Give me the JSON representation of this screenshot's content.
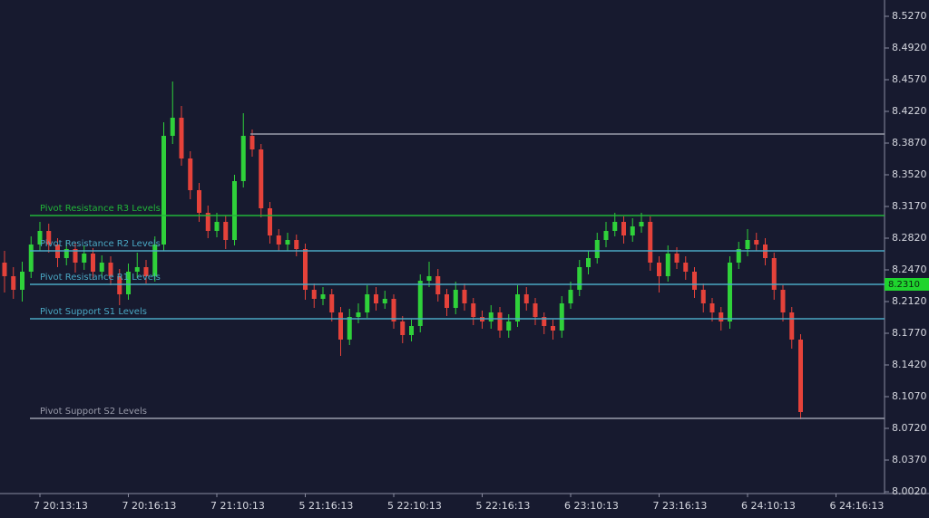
{
  "chart_data": {
    "type": "candlestick",
    "categories": [
      null,
      null,
      null,
      null,
      "7 20:13:13",
      null,
      null,
      null,
      null,
      null,
      null,
      null,
      null,
      null,
      "7 20:16:13",
      null,
      null,
      null,
      null,
      null,
      null,
      null,
      null,
      null,
      "7 21:10:13",
      null,
      null,
      null,
      null,
      null,
      null,
      null,
      null,
      null,
      "5 21:16:13",
      null,
      null,
      null,
      null,
      null,
      null,
      null,
      null,
      null,
      "5 22:10:13",
      null,
      null,
      null,
      null,
      null,
      null,
      null,
      null,
      null,
      "5 22:16:13",
      null,
      null,
      null,
      null,
      null,
      null,
      null,
      null,
      null,
      "6 23:10:13",
      null,
      null,
      null,
      null,
      null,
      null,
      null,
      null,
      null,
      "7 23:16:13",
      null,
      null,
      null,
      null,
      null,
      null,
      null,
      null,
      null,
      "6 24:10:13",
      null,
      null,
      null,
      null,
      null,
      null,
      null,
      null,
      null,
      "6 24:16:13",
      null,
      null
    ],
    "open": [
      8.255,
      8.24,
      8.225,
      8.245,
      8.275,
      8.29,
      8.275,
      8.26,
      8.27,
      8.255,
      8.265,
      8.245,
      8.255,
      8.24,
      8.22,
      8.245,
      8.25,
      8.24,
      8.275,
      8.395,
      8.415,
      8.37,
      8.335,
      8.31,
      8.29,
      8.3,
      8.28,
      8.345,
      8.395,
      8.38,
      8.315,
      8.285,
      8.275,
      8.28,
      8.27,
      8.225,
      8.215,
      8.22,
      8.2,
      8.17,
      8.195,
      8.2,
      8.22,
      8.21,
      8.215,
      8.19,
      8.175,
      8.185,
      8.235,
      8.24,
      8.22,
      8.205,
      8.225,
      8.21,
      8.195,
      8.19,
      8.2,
      8.18,
      8.19,
      8.22,
      8.21,
      8.195,
      8.185,
      8.18,
      8.21,
      8.225,
      8.25,
      8.26,
      8.28,
      8.29,
      8.3,
      8.285,
      8.295,
      8.3,
      8.255,
      8.24,
      8.265,
      8.255,
      8.245,
      8.225,
      8.21,
      8.2,
      8.19,
      8.255,
      8.27,
      8.28,
      8.275,
      8.26,
      8.225,
      8.2,
      8.17,
      null,
      null,
      null,
      null,
      null,
      null
    ],
    "high": [
      8.268,
      8.25,
      8.256,
      8.284,
      8.3,
      8.298,
      8.282,
      8.279,
      8.278,
      8.274,
      8.271,
      8.263,
      8.262,
      8.248,
      8.254,
      8.266,
      8.258,
      8.284,
      8.41,
      8.455,
      8.428,
      8.378,
      8.343,
      8.318,
      8.31,
      8.307,
      8.352,
      8.42,
      8.402,
      8.386,
      8.322,
      8.292,
      8.288,
      8.286,
      8.276,
      8.232,
      8.228,
      8.226,
      8.206,
      8.204,
      8.21,
      8.23,
      8.228,
      8.224,
      8.22,
      8.196,
      8.192,
      8.242,
      8.256,
      8.248,
      8.226,
      8.234,
      8.232,
      8.216,
      8.202,
      8.208,
      8.206,
      8.198,
      8.23,
      8.228,
      8.216,
      8.2,
      8.192,
      8.218,
      8.234,
      8.258,
      8.268,
      8.288,
      8.3,
      8.31,
      8.306,
      8.304,
      8.31,
      8.306,
      8.262,
      8.274,
      8.272,
      8.262,
      8.25,
      8.232,
      8.216,
      8.206,
      8.262,
      8.278,
      8.292,
      8.288,
      8.282,
      8.266,
      8.23,
      8.206,
      8.176,
      null,
      null,
      null,
      null,
      null,
      null
    ],
    "low": [
      8.222,
      8.215,
      8.212,
      8.238,
      8.268,
      8.266,
      8.25,
      8.252,
      8.244,
      8.247,
      8.236,
      8.238,
      8.23,
      8.208,
      8.214,
      8.238,
      8.232,
      8.234,
      8.268,
      8.386,
      8.362,
      8.325,
      8.3,
      8.282,
      8.283,
      8.27,
      8.274,
      8.338,
      8.372,
      8.305,
      8.276,
      8.268,
      8.268,
      8.262,
      8.214,
      8.205,
      8.208,
      8.19,
      8.152,
      8.164,
      8.188,
      8.194,
      8.202,
      8.204,
      8.182,
      8.166,
      8.168,
      8.178,
      8.228,
      8.212,
      8.196,
      8.198,
      8.202,
      8.186,
      8.182,
      8.182,
      8.172,
      8.172,
      8.184,
      8.202,
      8.186,
      8.176,
      8.17,
      8.172,
      8.204,
      8.218,
      8.242,
      8.254,
      8.272,
      8.284,
      8.276,
      8.278,
      8.288,
      8.246,
      8.222,
      8.234,
      8.248,
      8.236,
      8.216,
      8.2,
      8.19,
      8.18,
      8.182,
      8.248,
      8.262,
      8.268,
      8.252,
      8.214,
      8.19,
      8.16,
      8.082,
      null,
      null,
      null,
      null,
      null,
      null
    ],
    "close": [
      8.24,
      8.225,
      8.245,
      8.275,
      8.29,
      8.275,
      8.26,
      8.27,
      8.255,
      8.265,
      8.245,
      8.255,
      8.24,
      8.22,
      8.245,
      8.25,
      8.24,
      8.275,
      8.395,
      8.415,
      8.37,
      8.335,
      8.31,
      8.29,
      8.3,
      8.28,
      8.345,
      8.395,
      8.38,
      8.315,
      8.285,
      8.275,
      8.28,
      8.27,
      8.225,
      8.215,
      8.22,
      8.2,
      8.17,
      8.195,
      8.2,
      8.22,
      8.21,
      8.215,
      8.19,
      8.175,
      8.185,
      8.235,
      8.24,
      8.22,
      8.205,
      8.225,
      8.21,
      8.195,
      8.19,
      8.2,
      8.18,
      8.19,
      8.22,
      8.21,
      8.195,
      8.185,
      8.18,
      8.21,
      8.225,
      8.25,
      8.26,
      8.28,
      8.29,
      8.3,
      8.285,
      8.295,
      8.3,
      8.255,
      8.24,
      8.265,
      8.255,
      8.245,
      8.225,
      8.21,
      8.2,
      8.19,
      8.255,
      8.27,
      8.28,
      8.275,
      8.26,
      8.225,
      8.2,
      8.17,
      8.09,
      null,
      null,
      null,
      null,
      null,
      null
    ],
    "up_color": "#2fd13a",
    "down_color": "#e5423a",
    "ylim": [
      8.0,
      8.545
    ],
    "yticks": [
      {
        "value": 8.527,
        "label": "8.5270"
      },
      {
        "value": 8.492,
        "label": "8.4920"
      },
      {
        "value": 8.457,
        "label": "8.4570"
      },
      {
        "value": 8.422,
        "label": "8.4220"
      },
      {
        "value": 8.387,
        "label": "8.3870"
      },
      {
        "value": 8.352,
        "label": "8.3520"
      },
      {
        "value": 8.317,
        "label": "8.3170"
      },
      {
        "value": 8.282,
        "label": "8.2820"
      },
      {
        "value": 8.247,
        "label": "8.2470"
      },
      {
        "value": 8.212,
        "label": "8.2120"
      },
      {
        "value": 8.177,
        "label": "8.1770"
      },
      {
        "value": 8.142,
        "label": "8.1420"
      },
      {
        "value": 8.107,
        "label": "8.1070"
      },
      {
        "value": 8.072,
        "label": "8.0720"
      },
      {
        "value": 8.037,
        "label": "8.0370"
      },
      {
        "value": 8.002,
        "label": "8.0020"
      }
    ],
    "levels": [
      {
        "value": 8.397,
        "color": "#9a9cab"
      },
      {
        "name": "Pivot Resistance R3 Levels",
        "value": 8.307,
        "color": "#21b538"
      },
      {
        "name": "Pivot Resistance R2 Levels",
        "value": 8.268,
        "color": "#4aa8c4"
      },
      {
        "name": "Pivot Resistance R1 Levels",
        "value": 8.231,
        "color": "#4aa8c4"
      },
      {
        "name": "Pivot Support S1 Levels",
        "value": 8.193,
        "color": "#4aa8c4"
      },
      {
        "name": "Pivot Support S2 Levels",
        "value": 8.083,
        "color": "#9a9cab"
      }
    ],
    "current_price": {
      "value": 8.231,
      "label": "8.2310",
      "color": "#1fd42e"
    }
  }
}
